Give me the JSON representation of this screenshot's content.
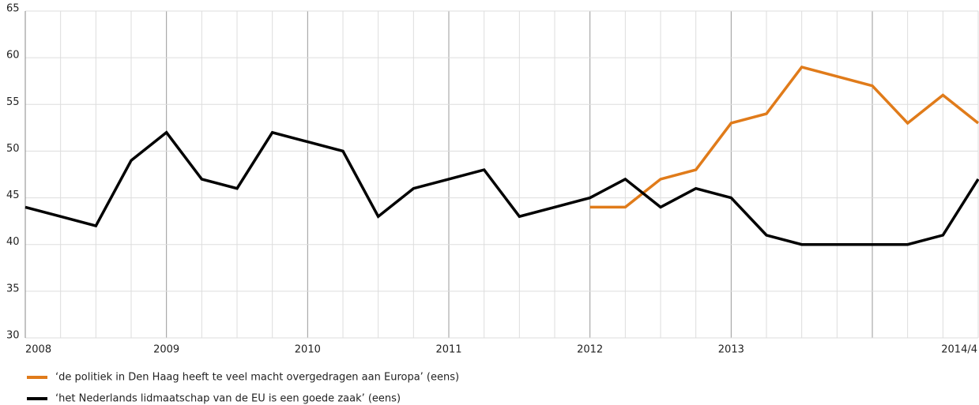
{
  "chart_data": {
    "type": "line",
    "categories": [
      "2008",
      null,
      null,
      null,
      "2009",
      null,
      null,
      null,
      "2010",
      null,
      null,
      null,
      "2011",
      null,
      null,
      null,
      "2012",
      null,
      null,
      null,
      "2013",
      null,
      null,
      null,
      null,
      null,
      null,
      "2014/4"
    ],
    "series": [
      {
        "name": "‘de politiek in Den Haag heeft te veel macht overgedragen aan Europa’ (eens)",
        "color": "#e07b1a",
        "values": [
          null,
          null,
          null,
          null,
          null,
          null,
          null,
          null,
          null,
          null,
          null,
          null,
          null,
          null,
          null,
          null,
          44,
          44,
          47,
          48,
          53,
          54,
          59,
          58,
          57,
          53,
          56,
          53
        ]
      },
      {
        "name": "‘het Nederlands lidmaatschap van de EU is een goede zaak’ (eens)",
        "color": "#000000",
        "values": [
          44,
          43,
          42,
          49,
          52,
          47,
          46,
          52,
          51,
          50,
          43,
          46,
          47,
          48,
          43,
          44,
          45,
          47,
          44,
          46,
          45,
          41,
          40,
          40,
          40,
          40,
          41,
          47
        ]
      }
    ],
    "ylim": [
      30,
      65
    ],
    "yticks": [
      30,
      35,
      40,
      45,
      50,
      55,
      60,
      65
    ],
    "grid": true
  }
}
